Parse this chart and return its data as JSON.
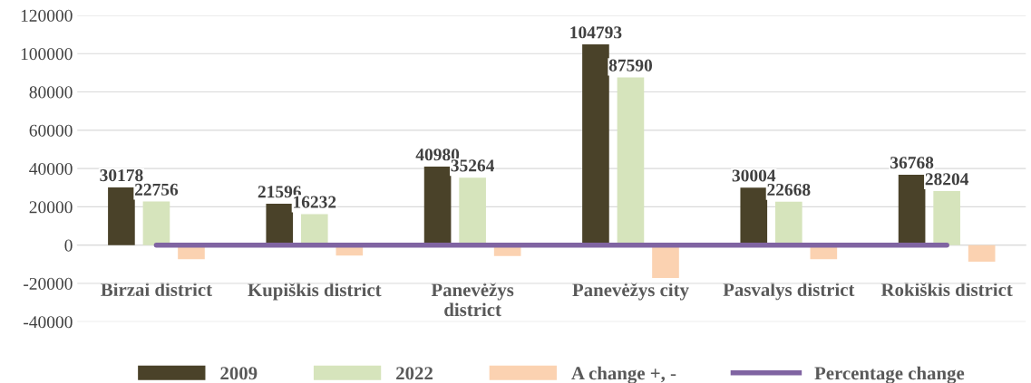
{
  "chart_data": {
    "type": "bar",
    "categories": [
      "Birzai district",
      "Kupiškis district",
      "Panevėžys\ndistrict",
      "Panevėžys city",
      "Pasvalys district",
      "Rokiškis district"
    ],
    "series": [
      {
        "name": "2009",
        "color": "#4a4229",
        "values": [
          30178,
          21596,
          40980,
          104793,
          30004,
          36768
        ],
        "value_labels": [
          "30178",
          "21596",
          "40980",
          "104793",
          "30004",
          "36768"
        ]
      },
      {
        "name": "2022",
        "color": "#d6e4bc",
        "values": [
          22756,
          16232,
          35264,
          87590,
          22668,
          28204
        ],
        "value_labels": [
          "22756",
          "16232",
          "35264",
          "87590",
          "22668",
          "28204"
        ]
      },
      {
        "name": "A change +, -",
        "color": "#fbd2b1",
        "values": [
          -7400,
          -5400,
          -5700,
          -17200,
          -7300,
          -8600
        ]
      },
      {
        "name": "Percentage change",
        "type": "line",
        "color": "#8064a2",
        "values": [
          -25,
          -25,
          -14,
          -16,
          -24,
          -23
        ]
      }
    ],
    "ylim": [
      -40000,
      120000
    ],
    "yticks": [
      -40000,
      -20000,
      0,
      20000,
      40000,
      60000,
      80000,
      100000,
      120000
    ],
    "grid": "y",
    "legend": "bottom"
  }
}
